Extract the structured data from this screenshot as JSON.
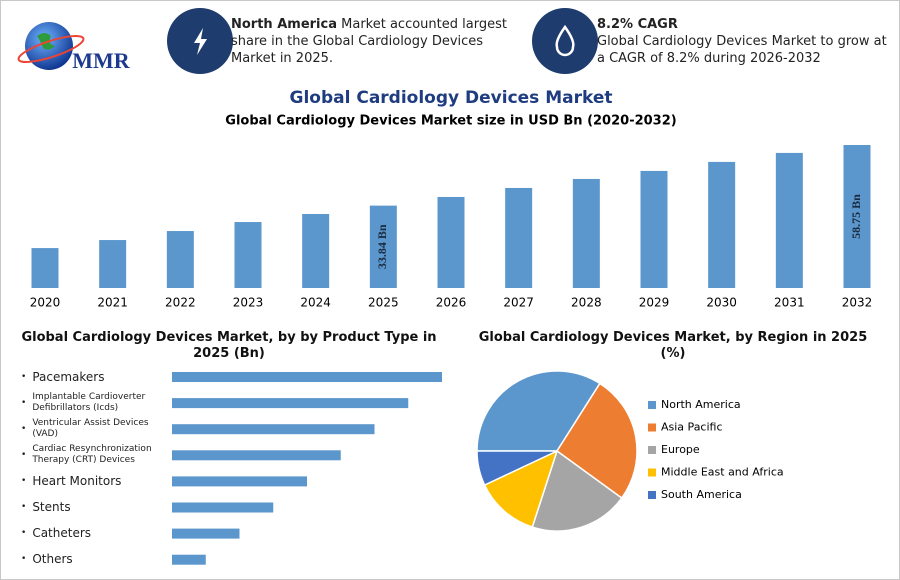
{
  "header": {
    "logo": "MMR",
    "callouts": [
      {
        "title": "North America",
        "text": "Market accounted largest share in the Global Cardiology Devices Market in 2025."
      },
      {
        "title": "8.2% CAGR",
        "text": "Global Cardiology Devices Market to grow at a CAGR of 8.2% during 2026-2032"
      }
    ]
  },
  "title": "Global Cardiology Devices Market",
  "chart_data": [
    {
      "type": "bar",
      "title": "Global Cardiology Devices Market size in USD Bn (2020-2032)",
      "categories": [
        "2020",
        "2021",
        "2022",
        "2023",
        "2024",
        "2025",
        "2026",
        "2027",
        "2028",
        "2029",
        "2030",
        "2031",
        "2032"
      ],
      "values": [
        16.4,
        19.7,
        23.4,
        27.1,
        30.4,
        33.84,
        37.4,
        41.1,
        44.8,
        48.1,
        51.8,
        55.5,
        58.75
      ],
      "value_labels": [
        null,
        null,
        null,
        null,
        null,
        "33.84 Bn",
        null,
        null,
        null,
        null,
        null,
        null,
        "58.75 Bn"
      ],
      "color": "#5b97cc"
    },
    {
      "type": "hbar",
      "title": "Global Cardiology Devices Market, by by Product Type in 2025 (Bn)",
      "categories": [
        "Pacemakers",
        "Implantable Cardioverter Defibrillators (Icds)",
        "Ventricular Assist Devices (VAD)",
        "Cardiac Resynchronization Therapy (CRT) Devices",
        "Heart Monitors",
        "Stents",
        "Catheters",
        "Others"
      ],
      "values": [
        8,
        7,
        6,
        5,
        4,
        3,
        2,
        1
      ],
      "color": "#5b97cc"
    },
    {
      "type": "pie",
      "title": "Global Cardiology Devices Market, by Region in 2025 (%)",
      "categories": [
        "North America",
        "Asia Pacific",
        "Europe",
        "Middle East and Africa",
        "South America"
      ],
      "values": [
        34,
        26,
        20,
        13,
        7
      ],
      "colors": [
        "#5b97cc",
        "#ed7d31",
        "#a5a5a5",
        "#ffc000",
        "#4472c4"
      ]
    }
  ]
}
